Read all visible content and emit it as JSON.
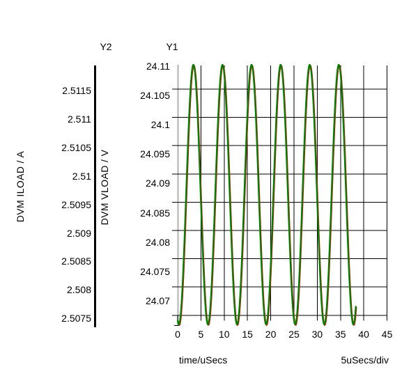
{
  "figure": {
    "background": "#ffffff",
    "grid_color": "#000000",
    "main_axis_line_color": "#c0c0c0",
    "secondary_axis_line_color": "#000000",
    "text_color": "#000000"
  },
  "chart_data": {
    "type": "line",
    "grid": true,
    "x_axis": {
      "title": "time/uSecs",
      "div_label": "5uSecs/div",
      "unit": "uSecs",
      "range": [
        0,
        45
      ],
      "tick_step": 5,
      "tick_labels": [
        "0",
        "5",
        "10",
        "15",
        "20",
        "25",
        "30",
        "35",
        "40",
        "45"
      ]
    },
    "y1_axis": {
      "header": "Y1",
      "title": "DVM VLOAD / V",
      "unit": "V",
      "tick_labels": [
        "24.11",
        "24.105",
        "24.1",
        "24.095",
        "24.09",
        "24.085",
        "24.08",
        "24.075",
        "24.07"
      ],
      "tick_interval": 0.005,
      "anchor_value": 24.105,
      "range_shown": [
        24.063,
        24.1095
      ]
    },
    "y2_axis": {
      "header": "Y2",
      "title": "DVM ILOAD / A",
      "unit": "A",
      "tick_labels": [
        "2.5115",
        "2.511",
        "2.5105",
        "2.51",
        "2.5095",
        "2.509",
        "2.5085",
        "2.508",
        "2.5075"
      ],
      "tick_interval": 0.0005,
      "anchor_value": 2.5115,
      "range_shown": [
        2.5073,
        2.5119
      ]
    },
    "series": [
      {
        "name": "DVM VLOAD",
        "axis": "y1",
        "color": "#008000",
        "shape": "sine",
        "mean": 24.08634,
        "amplitude": 0.02297,
        "period_us": 6.25,
        "first_min_us": 0.25,
        "t_start_us": 0,
        "t_end_us": 38.3,
        "min": 24.0634,
        "max": 24.1093
      },
      {
        "name": "DVM ILOAD",
        "axis": "y2",
        "color": "#dd0000",
        "shape": "sine",
        "mean": 2.509634,
        "amplitude": 0.002297,
        "period_us": 6.25,
        "first_min_us": 0.25,
        "t_start_us": 0,
        "t_end_us": 38.3,
        "min": 2.50734,
        "max": 2.51193,
        "note": "trace lies almost entirely hidden behind the green VLOAD trace; only tiny red specks visible"
      }
    ]
  }
}
